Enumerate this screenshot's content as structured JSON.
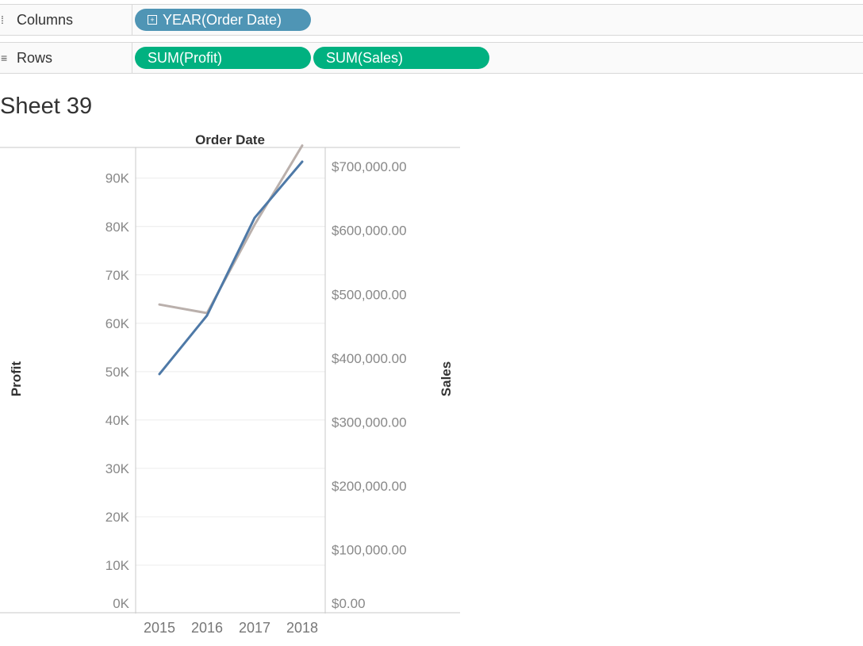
{
  "shelves": {
    "columns": {
      "label": "Columns",
      "icon": "columns-shelf-icon",
      "pills": [
        {
          "label": "YEAR(Order Date)",
          "color": "#4f95b5"
        }
      ]
    },
    "rows": {
      "label": "Rows",
      "icon": "rows-shelf-icon",
      "pills": [
        {
          "label": "SUM(Profit)",
          "color": "#00b180"
        },
        {
          "label": "SUM(Sales)",
          "color": "#00b180"
        }
      ]
    }
  },
  "sheet": {
    "title": "Sheet 39"
  },
  "chart_data": {
    "type": "line",
    "title": "Order Date",
    "xlabel": "",
    "categories": [
      "2015",
      "2016",
      "2017",
      "2018"
    ],
    "y_left": {
      "label": "Profit",
      "ylim": [
        0,
        97000
      ],
      "ticks": [
        0,
        10000,
        20000,
        30000,
        40000,
        50000,
        60000,
        70000,
        80000,
        90000
      ],
      "tick_labels": [
        "0K",
        "10K",
        "20K",
        "30K",
        "40K",
        "50K",
        "60K",
        "70K",
        "80K",
        "90K"
      ]
    },
    "y_right": {
      "label": "Sales",
      "ylim": [
        0,
        735000
      ],
      "ticks": [
        0,
        100000,
        200000,
        300000,
        400000,
        500000,
        600000,
        700000
      ],
      "tick_labels": [
        "$0.00",
        "$100,000.00",
        "$200,000.00",
        "$300,000.00",
        "$400,000.00",
        "$500,000.00",
        "$600,000.00",
        "$700,000.00"
      ]
    },
    "series": [
      {
        "name": "SUM(Profit)",
        "axis": "left",
        "color": "#4e79a7",
        "values": [
          49500,
          61600,
          81800,
          93400
        ]
      },
      {
        "name": "SUM(Sales)",
        "axis": "right",
        "color": "#bab0ac",
        "values": [
          484000,
          470500,
          609000,
          733000
        ]
      }
    ],
    "grid": true,
    "legend": "none"
  }
}
